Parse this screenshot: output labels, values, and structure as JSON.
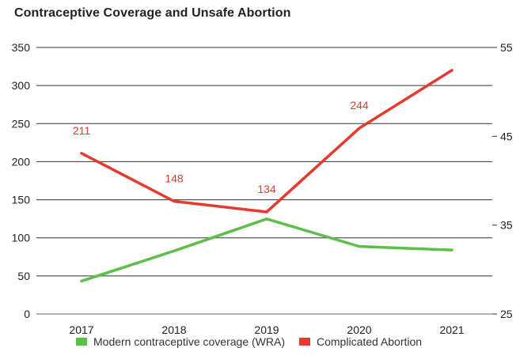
{
  "chart_data": {
    "type": "line",
    "title": "Contraceptive Coverage and Unsafe Abortion",
    "categories": [
      "2017",
      "2018",
      "2019",
      "2020",
      "2021"
    ],
    "y_left": {
      "ticks": [
        0,
        50,
        100,
        150,
        200,
        250,
        300,
        350
      ],
      "range": [
        0,
        350
      ]
    },
    "y_right": {
      "ticks": [
        25,
        35,
        45,
        55
      ],
      "range": [
        25,
        55
      ]
    },
    "grid": true,
    "legend_position": "bottom",
    "series": [
      {
        "name": "Modern contraceptive coverage (WRA)",
        "axis": "right",
        "color": "#5cbf4a",
        "values": [
          28.7,
          32.1,
          35.7,
          32.6,
          32.2
        ]
      },
      {
        "name": "Complicated Abortion",
        "axis": "left",
        "color": "#e53a2d",
        "values": [
          211,
          148,
          134,
          244,
          320
        ],
        "data_labels": [
          "211",
          "148",
          "134",
          "244",
          ""
        ]
      }
    ]
  }
}
